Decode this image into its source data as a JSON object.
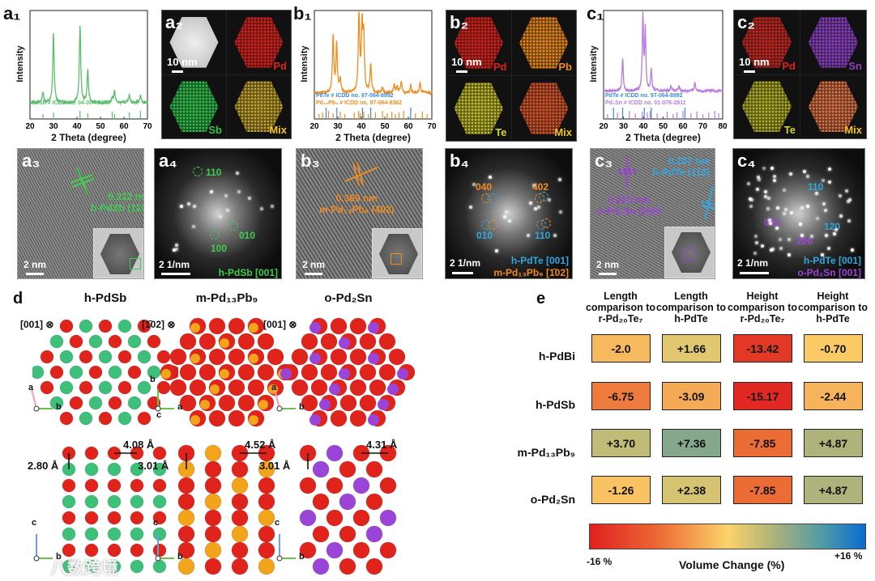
{
  "panels": {
    "a1": "a₁",
    "a2": "a₂",
    "a3": "a₃",
    "a4": "a₄",
    "b1": "b₁",
    "b2": "b₂",
    "b3": "b₃",
    "b4": "b₄",
    "c1": "c₁",
    "c2": "c₂",
    "c3": "c₃",
    "c4": "c₄",
    "d": "d",
    "e": "e"
  },
  "chart_data": [
    {
      "type": "line",
      "id": "a1",
      "title": "",
      "xlabel": "2 Theta (degree)",
      "ylabel": "Intensity",
      "xlim": [
        20,
        70
      ],
      "xticks": [
        20,
        30,
        40,
        50,
        60,
        70
      ],
      "ylim": [
        0,
        1
      ],
      "grid": false,
      "series": [
        {
          "name": "h-PdSb",
          "color": "#5cbf6e",
          "baseline": 0.15,
          "peaks": [
            [
              25.5,
              0.1
            ],
            [
              30,
              0.63
            ],
            [
              41.3,
              0.71
            ],
            [
              44.6,
              0.3
            ],
            [
              55,
              0.05
            ],
            [
              56,
              0.1
            ],
            [
              62.3,
              0.08
            ],
            [
              67,
              0.07
            ]
          ]
        }
      ],
      "references": [
        {
          "label": "PdSb # ICDD no. 04-004-2155",
          "color": "#5cbf6e",
          "sticks": [
            25.5,
            30,
            41.3,
            44.6,
            55,
            56,
            62.3,
            67
          ]
        }
      ]
    },
    {
      "type": "line",
      "id": "b1",
      "title": "",
      "xlabel": "2 Theta (degree)",
      "ylabel": "Intensity",
      "xlim": [
        20,
        70
      ],
      "xticks": [
        20,
        30,
        40,
        50,
        60,
        70
      ],
      "ylim": [
        0,
        1
      ],
      "grid": false,
      "series": [
        {
          "name": "m-Pd13Pb9",
          "color": "#f28c1e",
          "baseline": 0.24,
          "peaks": [
            [
              28,
              0.52
            ],
            [
              29.5,
              0.44
            ],
            [
              31,
              0.12
            ],
            [
              39,
              0.73
            ],
            [
              40.3,
              0.58
            ],
            [
              41,
              0.5
            ],
            [
              44,
              0.25
            ],
            [
              49,
              0.05
            ],
            [
              54,
              0.07
            ],
            [
              55.3,
              0.06
            ],
            [
              57,
              0.1
            ],
            [
              61,
              0.07
            ],
            [
              65,
              0.09
            ]
          ]
        }
      ],
      "references": [
        {
          "label": "PdTe # ICDD no. 97-064-8992",
          "color": "#3a8ad6",
          "sticks": [
            25,
            29.6,
            40.5,
            44,
            61
          ]
        },
        {
          "label": "Pd₁₃Pb₉ # ICDD no. 97-064-8362",
          "color": "#f28c1e",
          "sticks": [
            22,
            23.5,
            26,
            28,
            31,
            33,
            37,
            38.8,
            39.5,
            41,
            43,
            46,
            49,
            51,
            53,
            54.5,
            56,
            58,
            63,
            66,
            68
          ]
        }
      ]
    },
    {
      "type": "line",
      "id": "c1",
      "title": "",
      "xlabel": "2 Theta (degree)",
      "ylabel": "Intensity",
      "xlim": [
        20,
        80
      ],
      "xticks": [
        20,
        30,
        40,
        50,
        60,
        70,
        80
      ],
      "ylim": [
        0,
        1
      ],
      "grid": false,
      "series": [
        {
          "name": "o-Pd2Sn",
          "color": "#b77be0",
          "baseline": 0.26,
          "peaks": [
            [
              29.6,
              0.3
            ],
            [
              39.8,
              0.71
            ],
            [
              41,
              0.55
            ],
            [
              44,
              0.2
            ],
            [
              54,
              0.05
            ],
            [
              58,
              0.04
            ],
            [
              66,
              0.08
            ]
          ]
        }
      ],
      "references": [
        {
          "label": "PdTe # ICDD no. 97-064-8992",
          "color": "#3a8ad6",
          "sticks": [
            25,
            29.6,
            40.5,
            44,
            61
          ]
        },
        {
          "label": "Pd₂Sn # ICDD no. 01-076-2811",
          "color": "#b77be0",
          "sticks": [
            22,
            27,
            33,
            36,
            39.5,
            40.5,
            42,
            43.5,
            47,
            52,
            55,
            57,
            60,
            64,
            67,
            70,
            73,
            76,
            78
          ]
        }
      ]
    },
    {
      "type": "heatmap",
      "id": "e",
      "title": "",
      "xlabel": "",
      "ylabel": "",
      "columns": [
        "Length comparison to r-Pd₂₀Te₇",
        "Length comparison to h-PdTe",
        "Height comparison to r-Pd₂₀Te₇",
        "Height comparison to h-PdTe"
      ],
      "rows": [
        "h-PdBi",
        "h-PdSb",
        "m-Pd₁₃Pb₉",
        "o-Pd₂Sn"
      ],
      "values": [
        [
          -2.0,
          1.66,
          -13.42,
          -0.7
        ],
        [
          -6.75,
          -3.09,
          -15.17,
          -2.44
        ],
        [
          3.7,
          7.36,
          -7.85,
          4.87
        ],
        [
          -1.26,
          2.38,
          -7.85,
          4.87
        ]
      ],
      "labels": [
        [
          "-2.0",
          "+1.66",
          "-13.42",
          "-0.70"
        ],
        [
          "-6.75",
          "-3.09",
          "-15.17",
          "-2.44"
        ],
        [
          "+3.70",
          "+7.36",
          "-7.85",
          "+4.87"
        ],
        [
          "-1.26",
          "+2.38",
          "-7.85",
          "+4.87"
        ]
      ],
      "colorbar": {
        "min_label": "-16 %",
        "max_label": "+16 %",
        "title": "Volume Change (%)",
        "range": [
          -16,
          16
        ]
      }
    }
  ],
  "eds": {
    "a2": {
      "scale": "10 nm",
      "maps": [
        "",
        "Pd",
        "Sb",
        "Mix"
      ]
    },
    "b2": {
      "scale": "10 nm",
      "maps": [
        "Pd",
        "Pb",
        "Te",
        "Mix"
      ]
    },
    "c2": {
      "scale": "10 nm",
      "maps": [
        "Pd",
        "Sn",
        "Te",
        "Mix"
      ]
    }
  },
  "hrtem": {
    "a3": {
      "scale": "2 nm",
      "spacing": "0.212 nm",
      "plane": "h-PdSb (110)"
    },
    "a4": {
      "scale": "2 1/nm",
      "spots": [
        "110",
        "010",
        "100"
      ],
      "zone": "h-PdSb [001]"
    },
    "b3": {
      "scale": "2 nm",
      "spacing": "0.369 nm",
      "plane": "m-Pd₁₃Pb₉ (402)"
    },
    "b4": {
      "scale": "2 1/nm",
      "spots_orange": [
        "040",
        "402"
      ],
      "spots_blue": [
        "010",
        "110"
      ],
      "zone1": "h-PdTe [001]",
      "zone2": "m-Pd₁₃Pb₉ [1̄02]"
    },
    "c3": {
      "scale": "2 nm",
      "spacing1": "0.207 nm",
      "plane1": "h-PdTe (110)",
      "spacing2": "0.223 nm",
      "plane2": "o-Pd₂Sn (200)"
    },
    "c4": {
      "scale": "2 1/nm",
      "spots_blue": [
        "110",
        "120"
      ],
      "spots_purple": [
        "020",
        "200"
      ],
      "zone1": "h-PdTe [001]",
      "zone2": "o-Pd₂Sn [001]"
    }
  },
  "structures": [
    {
      "title": "h-PdSb",
      "zone": "[001] ⊗",
      "axes_top": [
        "a",
        "b"
      ],
      "axes_bottom": [
        "c",
        "b"
      ],
      "d1": "2.80 Å",
      "d2": "4.08 Å",
      "colors": [
        "#e0231b",
        "#3cc07a"
      ]
    },
    {
      "title": "m-Pd₁₃Pb₉",
      "zone": "[1̄02] ⊗",
      "axes_top": [
        "b",
        "a",
        "c"
      ],
      "axes_bottom": [
        "c",
        "b"
      ],
      "d1": "3.01 Å",
      "d2": "4.52 Å",
      "colors": [
        "#e0231b",
        "#f2a51b"
      ]
    },
    {
      "title": "o-Pd₂Sn",
      "zone": "[001] ⊗",
      "axes_top": [
        "a",
        "b"
      ],
      "axes_bottom": [
        "c",
        "b"
      ],
      "d1": "3.01 Å",
      "d2": "4.31 Å",
      "colors": [
        "#e0231b",
        "#9b45d8"
      ]
    }
  ],
  "watermark": "八数跨境"
}
